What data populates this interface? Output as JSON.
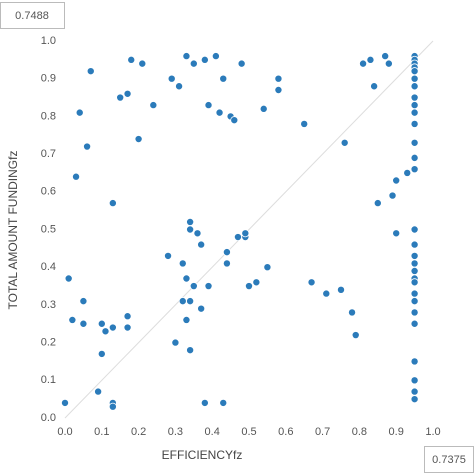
{
  "chart_data": {
    "type": "scatter",
    "x_label": "EFFICIENCYfz",
    "y_label": "TOTAL AMOUNT FUNDINGfz",
    "annotations": [
      "0.7488",
      "0.7375"
    ],
    "color": "#2b7bba",
    "xlim": [
      0,
      1
    ],
    "ylim": [
      0,
      1
    ],
    "xticks": [
      {
        "value": 0,
        "label": "0.0"
      },
      0.1,
      0.2,
      0.3,
      0.4,
      0.5,
      0.6,
      0.7,
      0.8,
      0.9,
      {
        "value": 1,
        "label": "1.0"
      }
    ],
    "yticks": [
      {
        "value": 0,
        "label": "0.0"
      },
      0.1,
      0.2,
      0.3,
      0.4,
      0.5,
      0.6,
      0.7,
      0.8,
      0.9,
      {
        "value": 1,
        "label": "1.0"
      }
    ],
    "series": [
      {
        "name": "points",
        "color": "#2b7bba",
        "x": [
          0.07,
          0.04,
          0.06,
          0.03,
          0.15,
          0.17,
          0.18,
          0.21,
          0.2,
          0.24,
          0.29,
          0.31,
          0.33,
          0.35,
          0.38,
          0.41,
          0.43,
          0.39,
          0.42,
          0.45,
          0.46,
          0.48,
          0.54,
          0.58,
          0.58,
          0.65,
          0.76,
          0.81,
          0.83,
          0.84,
          0.87,
          0.88,
          0.85,
          0.89,
          0.9,
          0.9,
          0.93,
          0.95,
          0.95,
          0.95,
          0.95,
          0.95,
          0.95,
          0.95,
          0.95,
          0.95,
          0.95,
          0.95,
          0.95,
          0.95,
          0.95,
          0.95,
          0.95,
          0.95,
          0.95,
          0.95,
          0.95,
          0.95,
          0.95,
          0.95,
          0.95,
          0.95,
          0.95,
          0.95,
          0.95,
          0.95,
          0.01,
          0.0,
          0.02,
          0.05,
          0.05,
          0.1,
          0.11,
          0.1,
          0.09,
          0.13,
          0.13,
          0.13,
          0.13,
          0.17,
          0.17,
          0.28,
          0.32,
          0.34,
          0.34,
          0.36,
          0.37,
          0.33,
          0.35,
          0.39,
          0.32,
          0.34,
          0.33,
          0.37,
          0.34,
          0.3,
          0.38,
          0.43,
          0.44,
          0.44,
          0.47,
          0.49,
          0.49,
          0.5,
          0.52,
          0.55,
          0.67,
          0.71,
          0.75,
          0.78,
          0.79
        ],
        "values": [
          0.92,
          0.81,
          0.72,
          0.64,
          0.85,
          0.86,
          0.95,
          0.94,
          0.74,
          0.83,
          0.9,
          0.88,
          0.96,
          0.94,
          0.95,
          0.96,
          0.9,
          0.83,
          0.81,
          0.8,
          0.79,
          0.94,
          0.82,
          0.9,
          0.87,
          0.78,
          0.73,
          0.94,
          0.95,
          0.88,
          0.96,
          0.94,
          0.57,
          0.59,
          0.63,
          0.49,
          0.65,
          0.96,
          0.95,
          0.94,
          0.93,
          0.92,
          0.9,
          0.88,
          0.85,
          0.83,
          0.81,
          0.78,
          0.73,
          0.69,
          0.66,
          0.5,
          0.46,
          0.43,
          0.41,
          0.39,
          0.37,
          0.36,
          0.33,
          0.31,
          0.28,
          0.25,
          0.15,
          0.1,
          0.07,
          0.05,
          0.37,
          0.04,
          0.26,
          0.31,
          0.25,
          0.25,
          0.23,
          0.17,
          0.07,
          0.04,
          0.03,
          0.24,
          0.57,
          0.27,
          0.24,
          0.43,
          0.41,
          0.52,
          0.5,
          0.49,
          0.46,
          0.37,
          0.35,
          0.35,
          0.31,
          0.31,
          0.26,
          0.29,
          0.18,
          0.2,
          0.04,
          0.04,
          0.44,
          0.41,
          0.48,
          0.48,
          0.49,
          0.35,
          0.36,
          0.4,
          0.36,
          0.33,
          0.34,
          0.28,
          0.22
        ]
      }
    ]
  }
}
